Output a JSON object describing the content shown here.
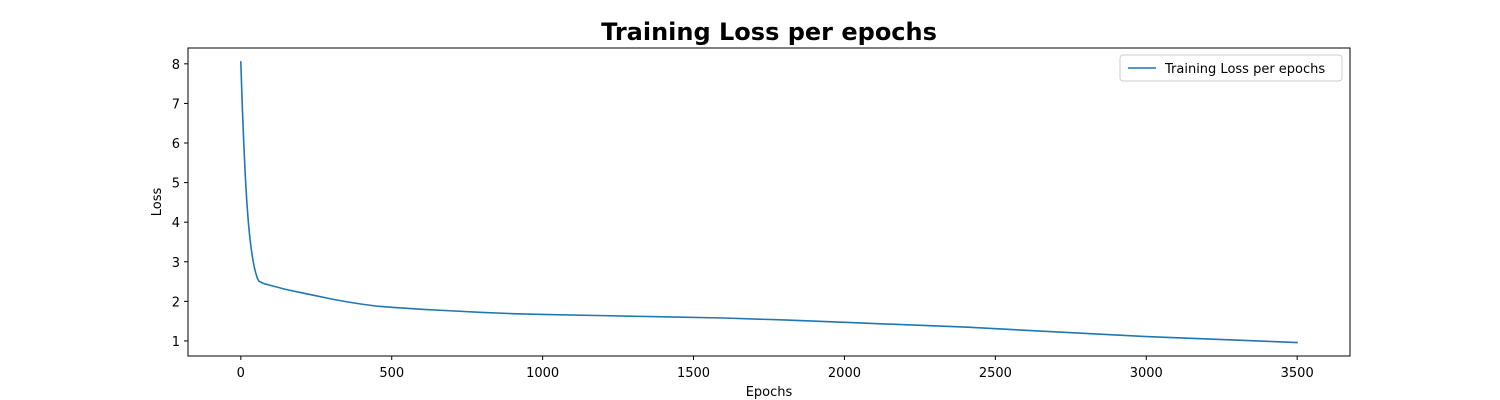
{
  "chart_data": {
    "type": "line",
    "title": "Training Loss per epochs",
    "xlabel": "Epochs",
    "ylabel": "Loss",
    "xlim": [
      -175,
      3675
    ],
    "ylim": [
      0.62,
      8.4
    ],
    "xticks": [
      0,
      500,
      1000,
      1500,
      2000,
      2500,
      3000,
      3500
    ],
    "yticks": [
      1,
      2,
      3,
      4,
      5,
      6,
      7,
      8
    ],
    "grid": false,
    "legend": {
      "position": "top-right"
    },
    "series": [
      {
        "name": "Training Loss per epochs",
        "color": "#1f77b4",
        "points": [
          [
            0,
            8.05
          ],
          [
            5,
            6.9
          ],
          [
            10,
            5.95
          ],
          [
            15,
            5.15
          ],
          [
            20,
            4.5
          ],
          [
            25,
            4.0
          ],
          [
            30,
            3.6
          ],
          [
            35,
            3.3
          ],
          [
            40,
            3.05
          ],
          [
            45,
            2.85
          ],
          [
            50,
            2.7
          ],
          [
            55,
            2.58
          ],
          [
            60,
            2.51
          ],
          [
            70,
            2.47
          ],
          [
            80,
            2.44
          ],
          [
            100,
            2.4
          ],
          [
            150,
            2.3
          ],
          [
            200,
            2.22
          ],
          [
            250,
            2.14
          ],
          [
            300,
            2.06
          ],
          [
            350,
            1.99
          ],
          [
            400,
            1.93
          ],
          [
            450,
            1.88
          ],
          [
            500,
            1.85
          ],
          [
            600,
            1.8
          ],
          [
            700,
            1.76
          ],
          [
            800,
            1.72
          ],
          [
            900,
            1.69
          ],
          [
            1000,
            1.67
          ],
          [
            1200,
            1.64
          ],
          [
            1400,
            1.61
          ],
          [
            1600,
            1.58
          ],
          [
            1800,
            1.53
          ],
          [
            2000,
            1.47
          ],
          [
            2200,
            1.41
          ],
          [
            2400,
            1.35
          ],
          [
            2600,
            1.27
          ],
          [
            2800,
            1.19
          ],
          [
            3000,
            1.11
          ],
          [
            3200,
            1.05
          ],
          [
            3400,
            0.99
          ],
          [
            3500,
            0.96
          ]
        ]
      }
    ]
  }
}
